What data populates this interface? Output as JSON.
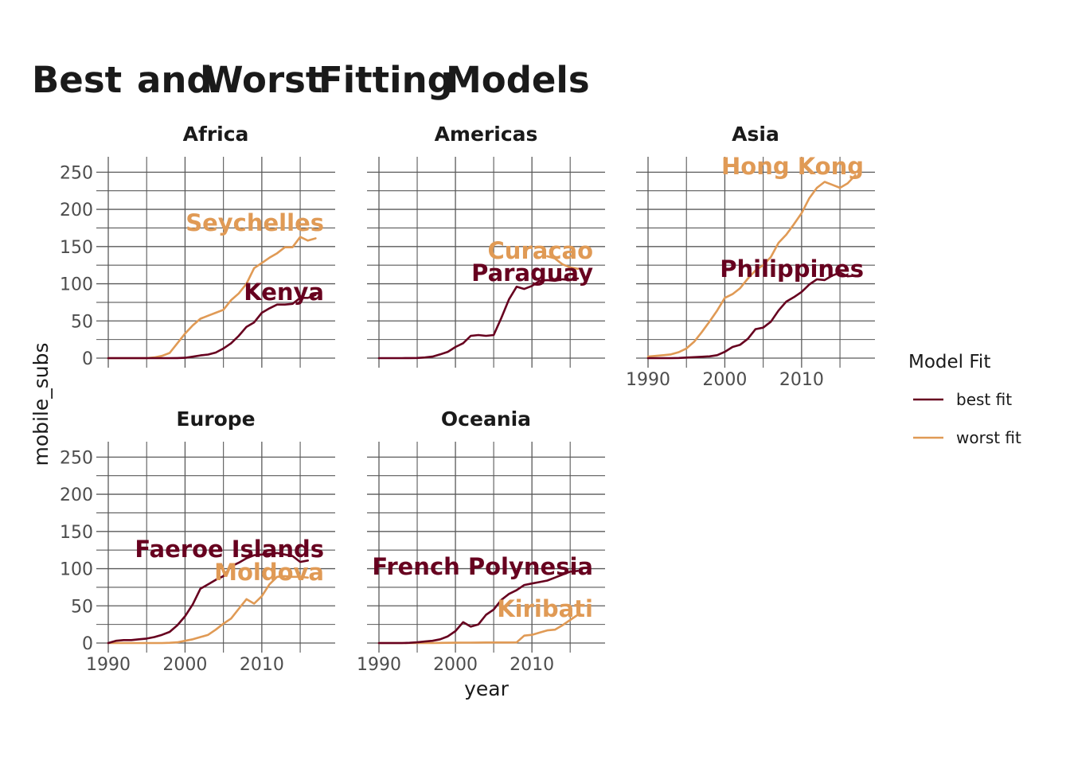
{
  "chart_data": {
    "type": "line",
    "title_words": [
      "Best",
      "and",
      "Worst",
      "Fitting",
      "Models"
    ],
    "xlabel": "year",
    "ylabel": "mobile_subs",
    "x_ticks": [
      1990,
      2000,
      2010
    ],
    "y_ticks": [
      0,
      50,
      100,
      150,
      200,
      250
    ],
    "xlim": [
      1990,
      2018
    ],
    "ylim": [
      0,
      260
    ],
    "grid": true,
    "legend": {
      "title": "Model Fit",
      "position": "right",
      "entries": [
        {
          "label": "best fit",
          "color": "#67001f"
        },
        {
          "label": "worst fit",
          "color": "#e09a55"
        }
      ]
    },
    "panels": [
      {
        "name": "Africa",
        "series": [
          {
            "name": "Kenya",
            "fit": "best fit",
            "x": [
              1990,
              1991,
              1992,
              1993,
              1994,
              1995,
              1996,
              1997,
              1998,
              1999,
              2000,
              2001,
              2002,
              2003,
              2004,
              2005,
              2006,
              2007,
              2008,
              2009,
              2010,
              2011,
              2012,
              2013,
              2014,
              2015,
              2016,
              2017
            ],
            "y": [
              0,
              0,
              0,
              0,
              0,
              0,
              0,
              0,
              0,
              0.1,
              0.4,
              1.9,
              3.6,
              4.8,
              7.5,
              13,
              20,
              30,
              42,
              48,
              61,
              67,
              72,
              72,
              73,
              81,
              81,
              85
            ]
          },
          {
            "name": "Seychelles",
            "fit": "worst fit",
            "x": [
              1990,
              1991,
              1992,
              1993,
              1994,
              1995,
              1996,
              1997,
              1998,
              1999,
              2000,
              2001,
              2002,
              2003,
              2004,
              2005,
              2006,
              2007,
              2008,
              2009,
              2010,
              2011,
              2012,
              2013,
              2014,
              2015,
              2016,
              2017
            ],
            "y": [
              0,
              0,
              0,
              0,
              0,
              0,
              1,
              3,
              7,
              20,
              33,
              44,
              53,
              57,
              61,
              65,
              78,
              87,
              100,
              121,
              128,
              135,
              141,
              149,
              149,
              163,
              158,
              161
            ]
          }
        ]
      },
      {
        "name": "Americas",
        "series": [
          {
            "name": "Paraguay",
            "fit": "best fit",
            "x": [
              1990,
              1991,
              1992,
              1993,
              1994,
              1995,
              1996,
              1997,
              1998,
              1999,
              2000,
              2001,
              2002,
              2003,
              2004,
              2005,
              2006,
              2007,
              2008,
              2009,
              2010,
              2011,
              2012,
              2013,
              2014,
              2015,
              2016
            ],
            "y": [
              0,
              0,
              0,
              0,
              0.1,
              0.2,
              0.9,
              2,
              5,
              8.5,
              15,
              20,
              30,
              31,
              30,
              31,
              54,
              79,
              96,
              93,
              97,
              104,
              105,
              104,
              106,
              105,
              107
            ]
          },
          {
            "name": "Curacao",
            "fit": "worst fit",
            "x": [
              2012,
              2013,
              2014,
              2015,
              2016
            ],
            "y": [
              137,
              134,
              126,
              122,
              120
            ]
          }
        ]
      },
      {
        "name": "Asia",
        "series": [
          {
            "name": "Philippines",
            "fit": "best fit",
            "x": [
              1990,
              1991,
              1992,
              1993,
              1994,
              1995,
              1996,
              1997,
              1998,
              1999,
              2000,
              2001,
              2002,
              2003,
              2004,
              2005,
              2006,
              2007,
              2008,
              2009,
              2010,
              2011,
              2012,
              2013,
              2014,
              2015,
              2016,
              2017
            ],
            "y": [
              0,
              0,
              0,
              0,
              0.2,
              0.8,
              1.3,
              1.8,
              2.4,
              4,
              8.5,
              15,
              18,
              26,
              39,
              41,
              49,
              64,
              76,
              82,
              89,
              99,
              106,
              105,
              111,
              115,
              110,
              111
            ]
          },
          {
            "name": "Hong Kong",
            "fit": "worst fit",
            "x": [
              1990,
              1991,
              1992,
              1993,
              1994,
              1995,
              1996,
              1997,
              1998,
              1999,
              2000,
              2001,
              2002,
              2003,
              2004,
              2005,
              2006,
              2007,
              2008,
              2009,
              2010,
              2011,
              2012,
              2013,
              2014,
              2015,
              2016,
              2017
            ],
            "y": [
              2,
              3,
              4,
              5,
              8,
              13,
              22,
              35,
              49,
              64,
              81,
              86,
              94,
              107,
              118,
              125,
              136,
              155,
              166,
              180,
              195,
              215,
              229,
              237,
              233,
              229,
              235,
              246
            ]
          }
        ]
      },
      {
        "name": "Europe",
        "series": [
          {
            "name": "Faeroe Islands",
            "fit": "best fit",
            "x": [
              1990,
              1991,
              1992,
              1993,
              1994,
              1995,
              1996,
              1997,
              1998,
              1999,
              2000,
              2001,
              2002,
              2003,
              2004,
              2005,
              2006,
              2007,
              2008,
              2009,
              2010,
              2011,
              2012,
              2013,
              2014,
              2015,
              2016
            ],
            "y": [
              0,
              3,
              4,
              4,
              5,
              6,
              8,
              11,
              15,
              24,
              36,
              52,
              73,
              79,
              85,
              90,
              103,
              108,
              114,
              118,
              119,
              120,
              121,
              119,
              117,
              109,
              111
            ]
          },
          {
            "name": "Moldova",
            "fit": "worst fit",
            "x": [
              1990,
              1991,
              1992,
              1993,
              1994,
              1995,
              1996,
              1997,
              1998,
              1999,
              2000,
              2001,
              2002,
              2003,
              2004,
              2005,
              2006,
              2007,
              2008,
              2009,
              2010,
              2011,
              2012,
              2013,
              2014,
              2015,
              2016
            ],
            "y": [
              0,
              0,
              0,
              0,
              0,
              0,
              0,
              0,
              0.3,
              1,
              3,
              5,
              8,
              11,
              18,
              26,
              33,
              46,
              59,
              53,
              63,
              79,
              89,
              90,
              89,
              89,
              88
            ]
          }
        ]
      },
      {
        "name": "Oceania",
        "series": [
          {
            "name": "French Polynesia",
            "fit": "best fit",
            "x": [
              1990,
              1991,
              1992,
              1993,
              1994,
              1995,
              1996,
              1997,
              1998,
              1999,
              2000,
              2001,
              2002,
              2003,
              2004,
              2005,
              2006,
              2007,
              2008,
              2009,
              2010,
              2011,
              2012,
              2013,
              2014,
              2015,
              2016
            ],
            "y": [
              0,
              0,
              0,
              0,
              0.3,
              1,
              2,
              3,
              5,
              9,
              16,
              28,
              22,
              25,
              38,
              45,
              58,
              66,
              71,
              78,
              80,
              82,
              84,
              88,
              92,
              96,
              97
            ]
          },
          {
            "name": "Kiribati",
            "fit": "worst fit",
            "x": [
              1990,
              1991,
              1992,
              1993,
              1994,
              1995,
              1996,
              1997,
              1998,
              1999,
              2000,
              2001,
              2002,
              2003,
              2004,
              2005,
              2006,
              2007,
              2008,
              2009,
              2010,
              2011,
              2012,
              2013,
              2014,
              2015,
              2016
            ],
            "y": [
              0,
              0,
              0,
              0,
              0,
              0,
              0,
              0,
              0.2,
              0.3,
              0.4,
              0.5,
              0.5,
              0.6,
              0.7,
              0.7,
              0.8,
              0.8,
              0.9,
              10,
              11,
              14,
              17,
              18,
              24,
              31,
              38
            ]
          }
        ]
      }
    ]
  }
}
